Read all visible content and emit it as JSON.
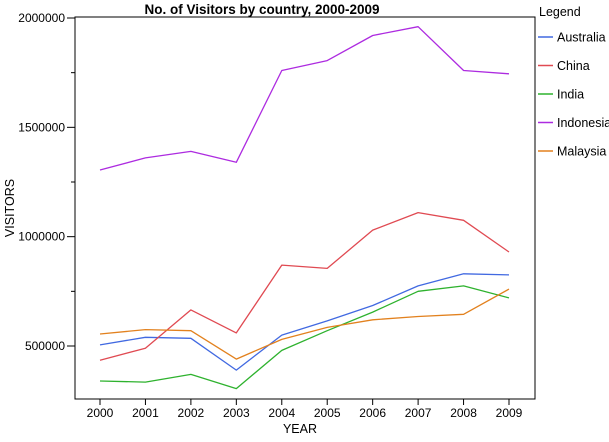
{
  "figure": {
    "background": "#ffffff"
  },
  "legend": {
    "title": "Legend"
  },
  "chart_data": {
    "type": "line",
    "title": "No. of Visitors by country, 2000-2009",
    "xlabel": "YEAR",
    "ylabel": "VISITORS",
    "x": [
      2000,
      2001,
      2002,
      2003,
      2004,
      2005,
      2006,
      2007,
      2008,
      2009
    ],
    "series": [
      {
        "name": "Australia",
        "color": "#4169E1",
        "values": [
          505000,
          540000,
          535000,
          390000,
          550000,
          615000,
          685000,
          775000,
          830000,
          825000
        ]
      },
      {
        "name": "China",
        "color": "#E04A52",
        "values": [
          435000,
          490000,
          665000,
          560000,
          870000,
          855000,
          1030000,
          1110000,
          1075000,
          930000
        ]
      },
      {
        "name": "India",
        "color": "#2EB22E",
        "values": [
          340000,
          335000,
          370000,
          305000,
          480000,
          570000,
          655000,
          750000,
          775000,
          720000
        ]
      },
      {
        "name": "Indonesia",
        "color": "#AD2BE0",
        "values": [
          1305000,
          1360000,
          1390000,
          1340000,
          1760000,
          1805000,
          1920000,
          1960000,
          1760000,
          1745000
        ]
      },
      {
        "name": "Malaysia",
        "color": "#E2811E",
        "values": [
          555000,
          575000,
          570000,
          440000,
          530000,
          585000,
          620000,
          635000,
          645000,
          760000
        ]
      }
    ],
    "ylim": [
      260000,
      2005000
    ],
    "y_major_ticks": [
      2000000,
      1500000,
      1000000,
      500000
    ],
    "y_minor_ticks": [
      1750000,
      1250000,
      750000
    ],
    "x_ticks": [
      2000,
      2001,
      2002,
      2003,
      2004,
      2005,
      2006,
      2007,
      2008,
      2009
    ],
    "legend_position": "right",
    "grid": false
  }
}
